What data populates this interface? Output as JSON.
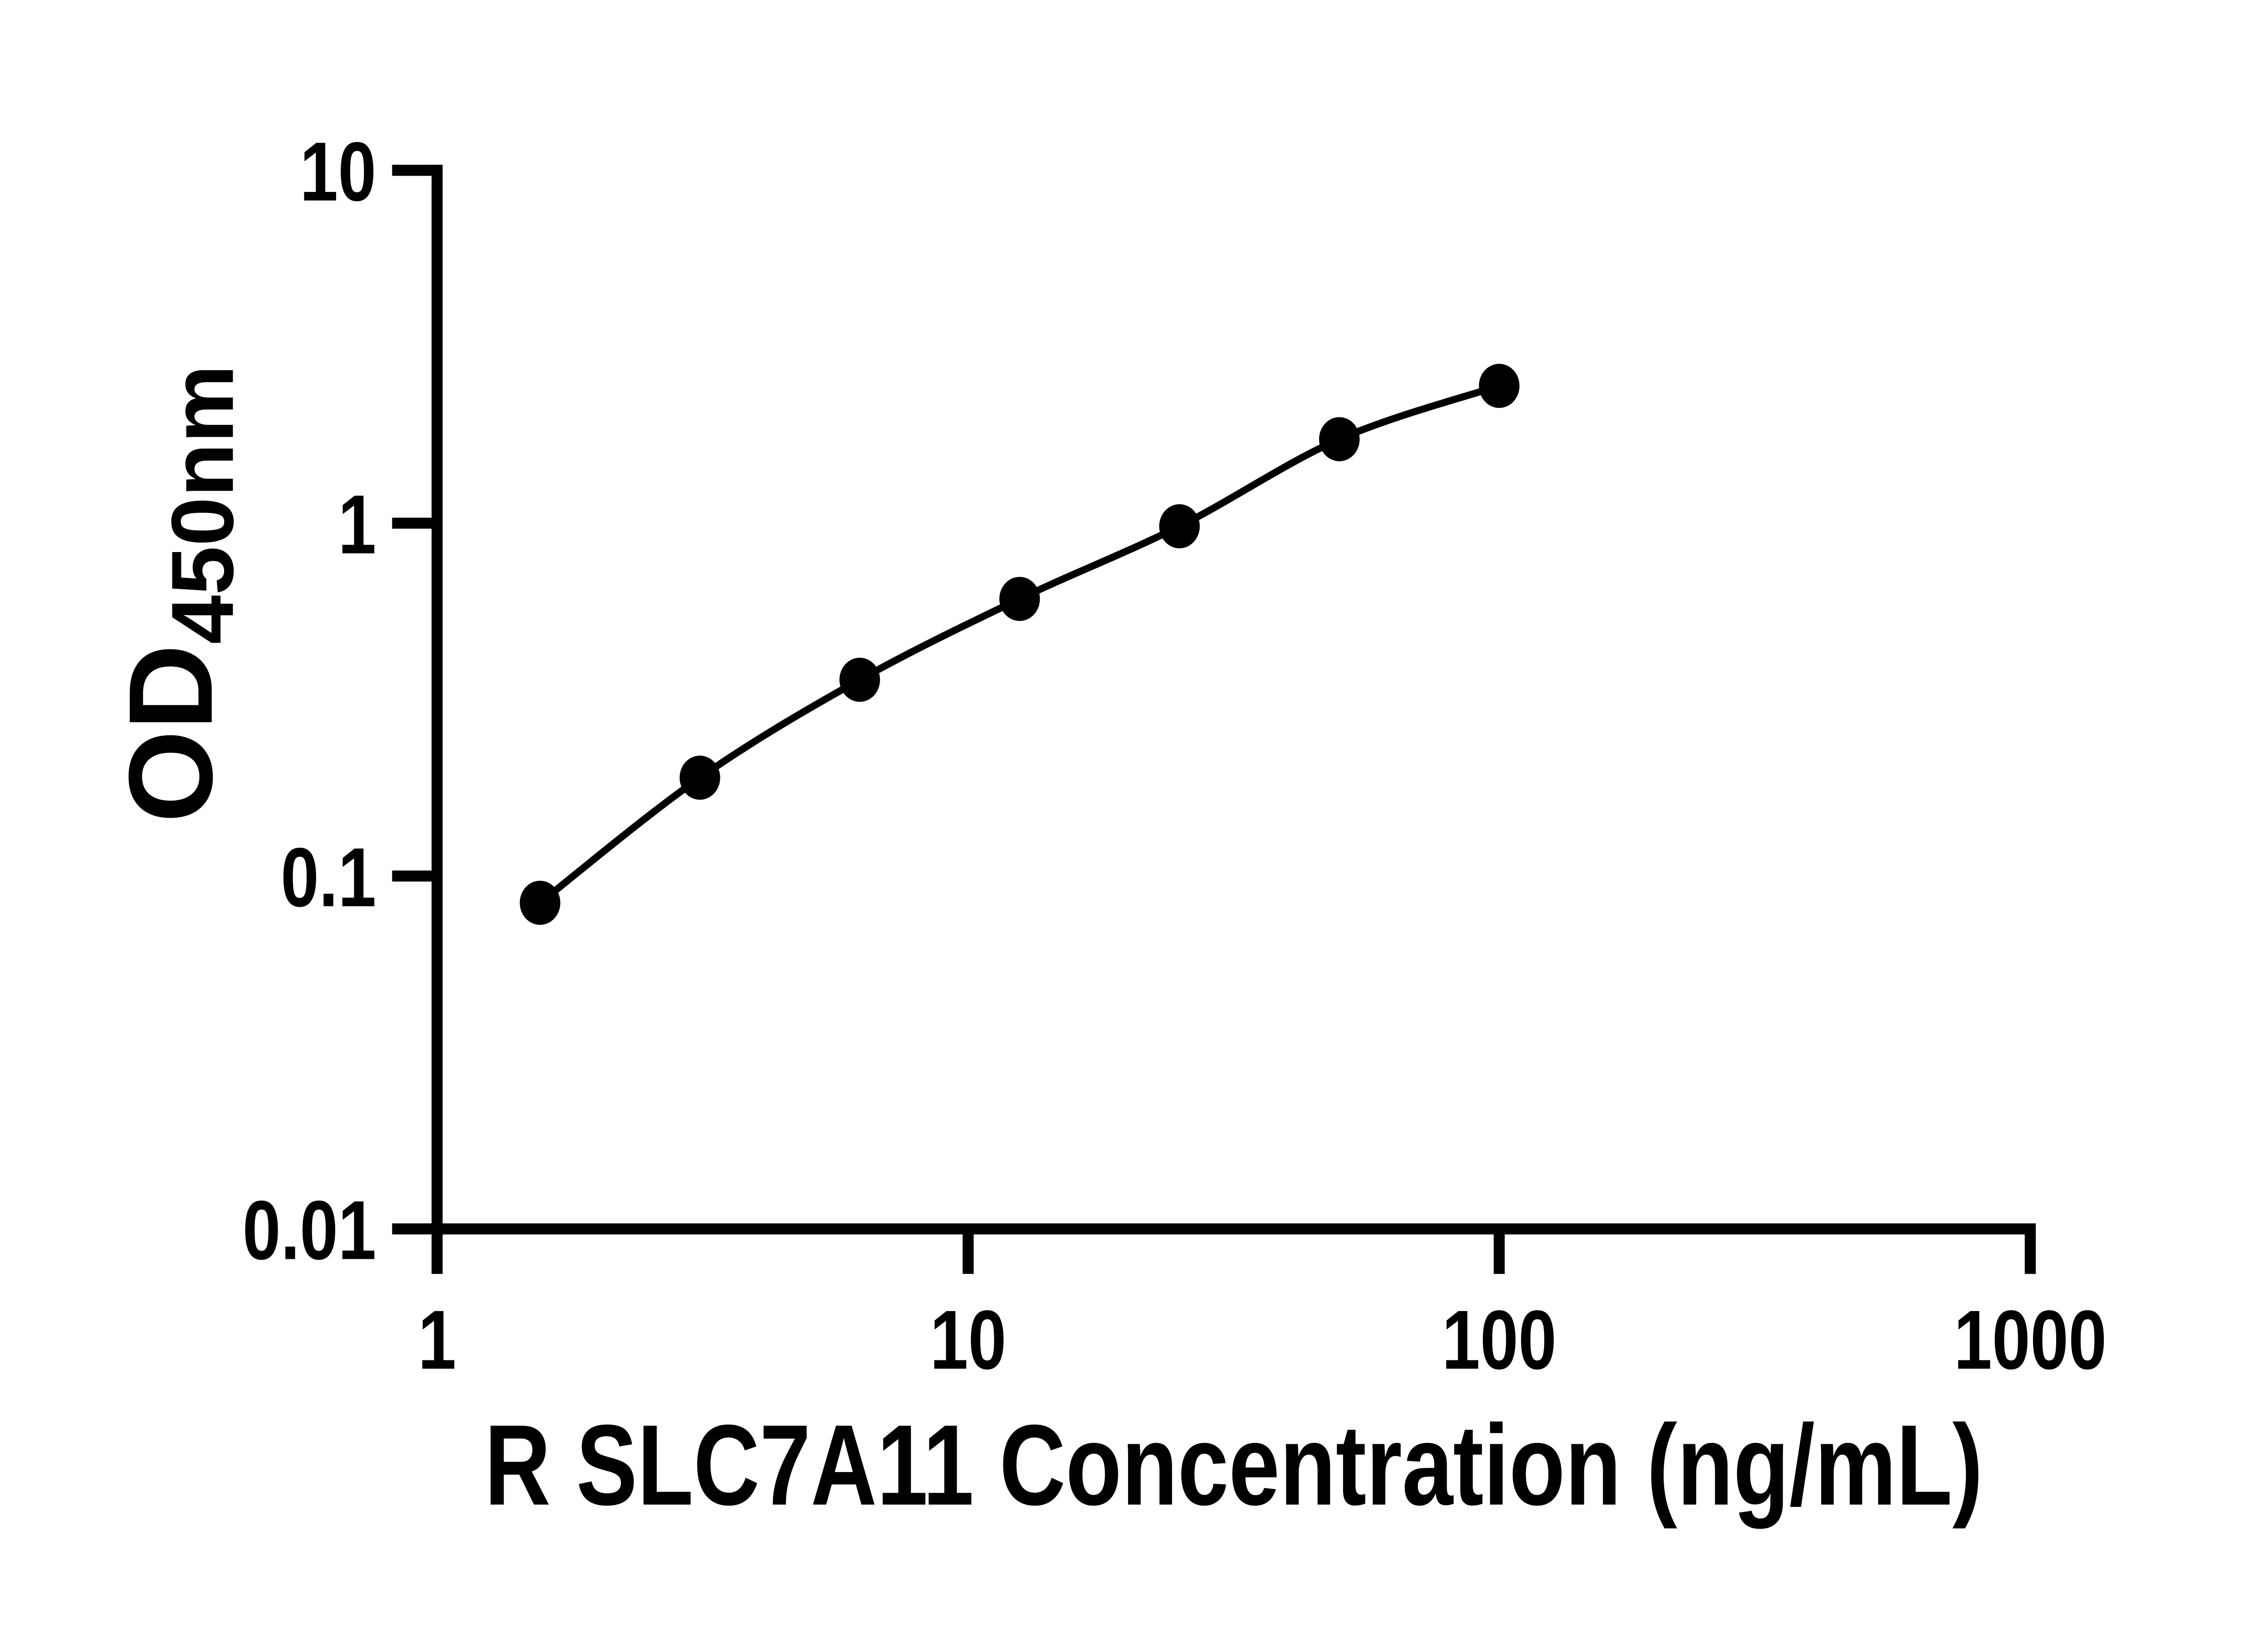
{
  "figure": {
    "background": "#ffffff",
    "ink_color": "#000000"
  },
  "chart_data": {
    "type": "line",
    "subtype": "log-log standard curve with filled circle markers",
    "title": "",
    "xlabel": "R SLC7A11 Concentration (ng/mL)",
    "ylabel_main": "OD",
    "ylabel_sub": "450nm",
    "x_scale": "log",
    "y_scale": "log",
    "x": [
      1.5625,
      3.125,
      6.25,
      12.5,
      25,
      50,
      100
    ],
    "y": [
      0.084,
      0.19,
      0.36,
      0.61,
      0.98,
      1.73,
      2.45
    ],
    "x_ticks": [
      1,
      10,
      100,
      1000
    ],
    "y_ticks": [
      0.01,
      0.1,
      1,
      10
    ],
    "xlim": [
      1,
      1000
    ],
    "ylim": [
      0.01,
      10
    ],
    "grid": false,
    "legend": "none",
    "marker": "filled-circle",
    "line_color": "#000000",
    "marker_color": "#000000"
  }
}
